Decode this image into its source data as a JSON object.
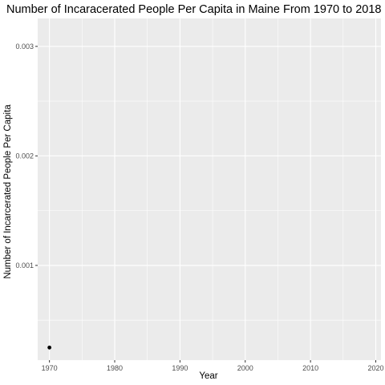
{
  "chart_data": {
    "type": "scatter",
    "title": "Number of Incaracerated People Per Capita in Maine From 1970 to 2018",
    "xlabel": "Year",
    "ylabel": "Number of Incarcerated People Per Capita",
    "x_ticks": [
      1970,
      1980,
      1990,
      2000,
      2010,
      2020
    ],
    "y_ticks": [
      0.001,
      0.002,
      0.003
    ],
    "y_tick_labels": [
      "0.001",
      "0.002",
      "0.003"
    ],
    "xlim": [
      1968.2,
      2020.8
    ],
    "ylim": [
      0.000135,
      0.003255
    ],
    "grid": true,
    "legend": "none",
    "panel_color": "#ebebeb",
    "grid_color": "#ffffff",
    "point_color": "#000000",
    "points": [
      {
        "x": 1970,
        "y": 0.00025
      }
    ]
  }
}
